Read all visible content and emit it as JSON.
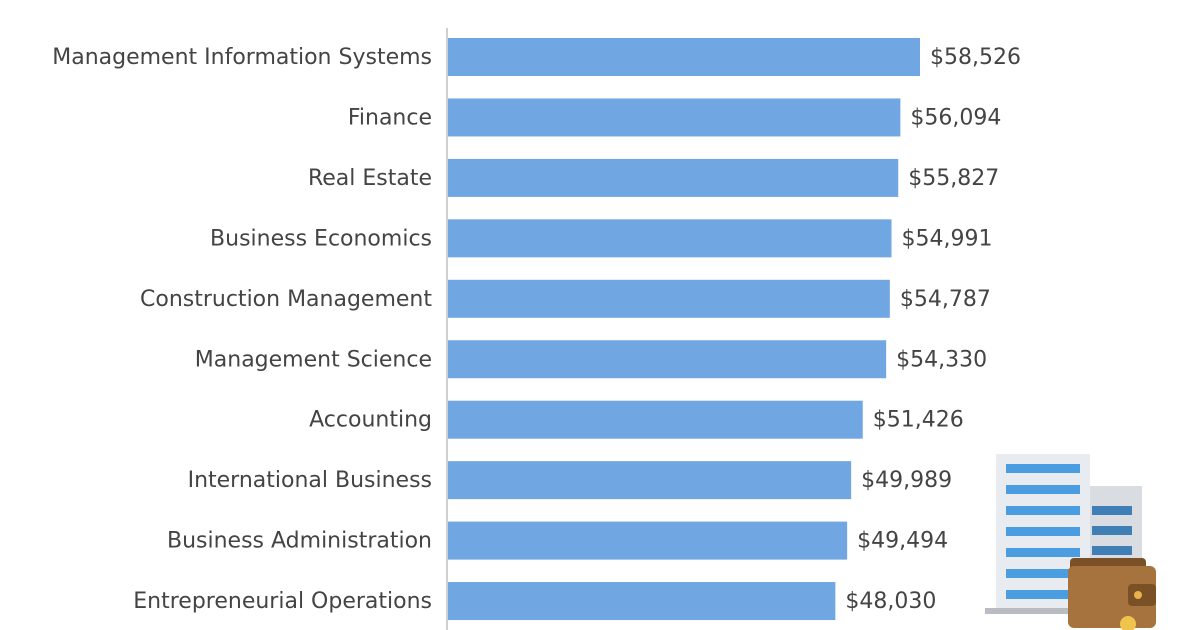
{
  "chart_data": {
    "type": "bar",
    "orientation": "horizontal",
    "color": "#70a6e2",
    "categories": [
      "Management Information Systems",
      "Finance",
      "Real Estate",
      "Business Economics",
      "Construction Management",
      "Management Science",
      "Accounting",
      "International Business",
      "Business Administration",
      "Entrepreneurial Operations"
    ],
    "values": [
      58526,
      56094,
      55827,
      54991,
      54787,
      54330,
      51426,
      49989,
      49494,
      48030
    ],
    "value_labels": [
      "$58,526",
      "$56,094",
      "$55,827",
      "$54,991",
      "$54,787",
      "$54,330",
      "$51,426",
      "$49,989",
      "$49,494",
      "$48,030"
    ]
  }
}
